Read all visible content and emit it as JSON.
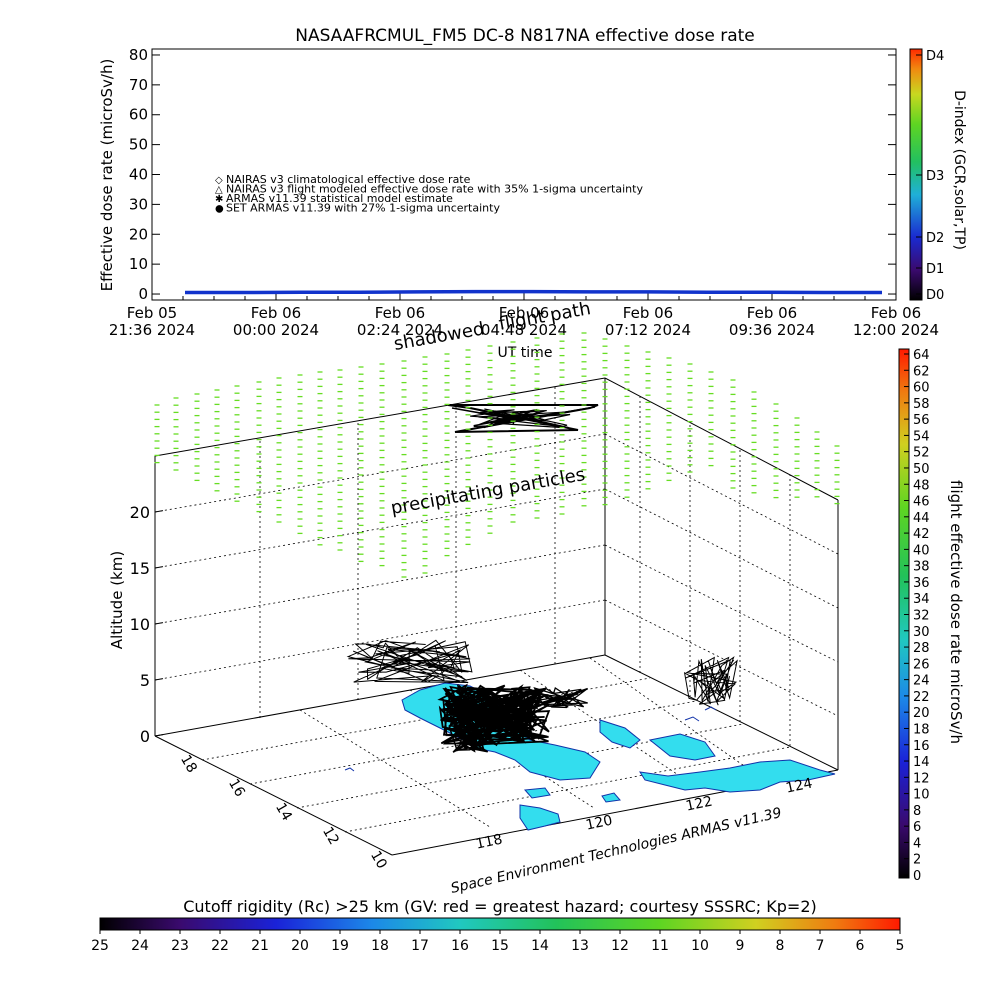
{
  "chart_data": [
    {
      "type": "line",
      "title": "NASAAFRCMUL_FM5 DC-8   N817NA effective dose rate",
      "ylabel": "Effective dose rate (microSv/h)",
      "xlabel": "UT time",
      "ylim": [
        0,
        80
      ],
      "yticks": [
        "0",
        "10",
        "20",
        "30",
        "40",
        "50",
        "60",
        "70",
        "80"
      ],
      "xticks": [
        {
          "line1": "Feb 05",
          "line2": "21:36 2024"
        },
        {
          "line1": "Feb 06",
          "line2": "00:00 2024"
        },
        {
          "line1": "Feb 06",
          "line2": "02:24 2024"
        },
        {
          "line1": "Feb 06",
          "line2": "04:48 2024"
        },
        {
          "line1": "Feb 06",
          "line2": "07:12 2024"
        },
        {
          "line1": "Feb 06",
          "line2": "09:36 2024"
        },
        {
          "line1": "Feb 06",
          "line2": "12:00 2024"
        }
      ],
      "legend": [
        {
          "marker": "◇",
          "color": "#cc0000",
          "label": "NAIRAS v3 climatological effective dose rate"
        },
        {
          "marker": "△",
          "color": "#000000",
          "label": "NAIRAS v3 flight modeled effective dose rate with 35% 1-sigma uncertainty"
        },
        {
          "marker": "✱",
          "color": "#44dd22",
          "label": "ARMAS v11.39 statistical model estimate"
        },
        {
          "marker": "●",
          "color": "#1133cc",
          "label": "SET ARMAS v11.39 with 27% 1-sigma uncertainty"
        }
      ],
      "series": [
        {
          "name": "SET ARMAS v11.39 with 27% 1-sigma uncertainty",
          "values": [
            0.5,
            0.5,
            0.6,
            0.6,
            0.7,
            0.8,
            0.8,
            0.7,
            0.7,
            0.6,
            0.6,
            0.5,
            0.5
          ]
        }
      ],
      "dindex_colorbar": {
        "label": "D-index (GCR,solar,TP)",
        "ticks": [
          "D0",
          "D1",
          "D2",
          "D3",
          "D4"
        ]
      }
    },
    {
      "type": "scatter",
      "ylabel": "Altitude (km)",
      "zticks": [
        "0",
        "5",
        "10",
        "15",
        "20"
      ],
      "lat_ticks": [
        "10",
        "12",
        "14",
        "16",
        "18"
      ],
      "lon_ticks": [
        "118",
        "120",
        "122",
        "124"
      ],
      "annotations": {
        "shadowed": "shadowed",
        "flight_path": "flight path",
        "precipitating": "precipitating particles",
        "credit": "Space Environment Technologies ARMAS v11.39"
      },
      "dose_colorbar": {
        "label": "flight effective dose rate microSv/h",
        "ticks": [
          "0",
          "2",
          "4",
          "6",
          "8",
          "10",
          "12",
          "14",
          "16",
          "18",
          "20",
          "22",
          "24",
          "26",
          "28",
          "30",
          "32",
          "34",
          "36",
          "38",
          "40",
          "42",
          "44",
          "46",
          "48",
          "50",
          "52",
          "54",
          "56",
          "58",
          "60",
          "62",
          "64"
        ]
      },
      "cutoff_colorbar": {
        "label": "Cutoff rigidity (Rc) >25 km (GV: red = greatest hazard; courtesy SSSRC; Kp=2)",
        "ticks": [
          "25",
          "24",
          "23",
          "22",
          "21",
          "20",
          "19",
          "18",
          "17",
          "16",
          "15",
          "14",
          "13",
          "12",
          "11",
          "10",
          "9",
          "8",
          "7",
          "6",
          "5"
        ]
      },
      "colors": {
        "land": "#33ddee",
        "precip": "#66dd22",
        "track": "#000000"
      }
    }
  ]
}
